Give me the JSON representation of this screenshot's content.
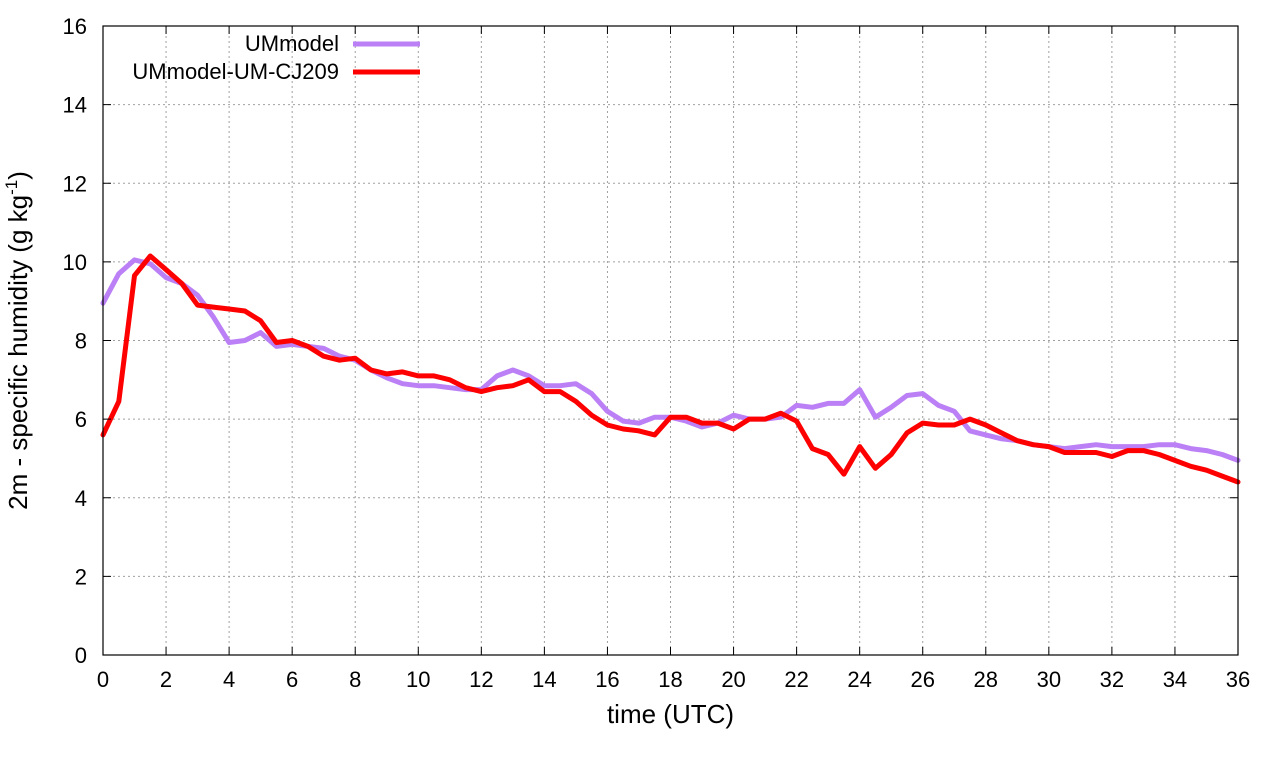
{
  "chart_data": {
    "type": "line",
    "title": "",
    "xlabel": "time (UTC)",
    "ylabel": "2m - specific humidity (g kg",
    "ylabel_superscript": "-1",
    "ylabel_suffix": ")",
    "xlim": [
      0,
      36
    ],
    "ylim": [
      0,
      16
    ],
    "xticks": [
      0,
      2,
      4,
      6,
      8,
      10,
      12,
      14,
      16,
      18,
      20,
      22,
      24,
      26,
      28,
      30,
      32,
      34,
      36
    ],
    "yticks": [
      0,
      2,
      4,
      6,
      8,
      10,
      12,
      14,
      16
    ],
    "grid": true,
    "legend_position": "top-left",
    "series": [
      {
        "name": "UMmodel",
        "color": "#bb80f5",
        "x": [
          0,
          0.5,
          1,
          1.5,
          2,
          2.5,
          3,
          3.5,
          4,
          4.5,
          5,
          5.5,
          6,
          6.5,
          7,
          7.5,
          8,
          8.5,
          9,
          9.5,
          10,
          10.5,
          11,
          11.5,
          12,
          12.5,
          13,
          13.5,
          14,
          14.5,
          15,
          15.5,
          16,
          16.5,
          17,
          17.5,
          18,
          18.5,
          19,
          19.5,
          20,
          20.5,
          21,
          21.5,
          22,
          22.5,
          23,
          23.5,
          24,
          24.5,
          25,
          25.5,
          26,
          26.5,
          27,
          27.5,
          28,
          28.5,
          29,
          29.5,
          30,
          30.5,
          31,
          31.5,
          32,
          32.5,
          33,
          33.5,
          34,
          34.5,
          35,
          35.5,
          36
        ],
        "y": [
          8.95,
          9.7,
          10.05,
          9.95,
          9.6,
          9.45,
          9.15,
          8.6,
          7.95,
          8.0,
          8.2,
          7.85,
          7.9,
          7.85,
          7.8,
          7.6,
          7.5,
          7.25,
          7.05,
          6.9,
          6.85,
          6.85,
          6.8,
          6.75,
          6.75,
          7.1,
          7.25,
          7.1,
          6.85,
          6.85,
          6.9,
          6.65,
          6.2,
          5.95,
          5.9,
          6.05,
          6.05,
          5.95,
          5.8,
          5.9,
          6.1,
          6.0,
          6.0,
          6.05,
          6.35,
          6.3,
          6.4,
          6.4,
          6.75,
          6.05,
          6.3,
          6.6,
          6.65,
          6.35,
          6.2,
          5.7,
          5.6,
          5.5,
          5.45,
          5.35,
          5.3,
          5.25,
          5.3,
          5.35,
          5.3,
          5.3,
          5.3,
          5.35,
          5.35,
          5.25,
          5.2,
          5.1,
          4.95
        ]
      },
      {
        "name": "UMmodel-UM-CJ209",
        "color": "#ff0000",
        "x": [
          0,
          0.5,
          1,
          1.5,
          2,
          2.5,
          3,
          3.5,
          4,
          4.5,
          5,
          5.5,
          6,
          6.5,
          7,
          7.5,
          8,
          8.5,
          9,
          9.5,
          10,
          10.5,
          11,
          11.5,
          12,
          12.5,
          13,
          13.5,
          14,
          14.5,
          15,
          15.5,
          16,
          16.5,
          17,
          17.5,
          18,
          18.5,
          19,
          19.5,
          20,
          20.5,
          21,
          21.5,
          22,
          22.5,
          23,
          23.5,
          24,
          24.5,
          25,
          25.5,
          26,
          26.5,
          27,
          27.5,
          28,
          28.5,
          29,
          29.5,
          30,
          30.5,
          31,
          31.5,
          32,
          32.5,
          33,
          33.5,
          34,
          34.5,
          35,
          35.5,
          36
        ],
        "y": [
          5.6,
          6.45,
          9.65,
          10.15,
          9.8,
          9.45,
          8.9,
          8.85,
          8.8,
          8.75,
          8.5,
          7.95,
          8.0,
          7.85,
          7.6,
          7.5,
          7.55,
          7.25,
          7.15,
          7.2,
          7.1,
          7.1,
          7.0,
          6.8,
          6.7,
          6.8,
          6.85,
          7.0,
          6.7,
          6.7,
          6.45,
          6.1,
          5.85,
          5.75,
          5.7,
          5.6,
          6.05,
          6.05,
          5.9,
          5.9,
          5.75,
          6.0,
          6.0,
          6.15,
          5.95,
          5.25,
          5.1,
          4.6,
          5.3,
          4.75,
          5.1,
          5.65,
          5.9,
          5.85,
          5.85,
          6.0,
          5.85,
          5.65,
          5.45,
          5.35,
          5.3,
          5.15,
          5.15,
          5.15,
          5.05,
          5.2,
          5.2,
          5.1,
          4.95,
          4.8,
          4.7,
          4.55,
          4.4
        ]
      }
    ]
  }
}
